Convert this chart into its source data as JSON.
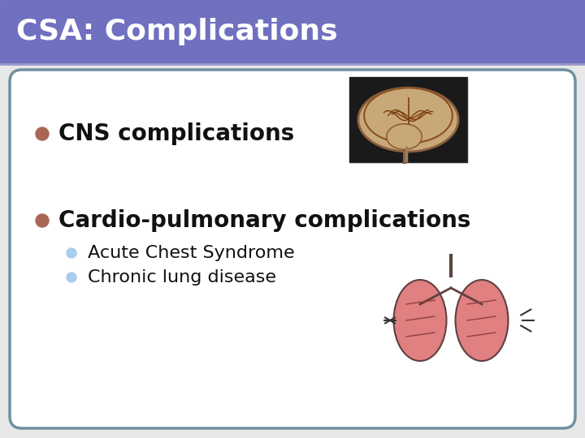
{
  "title": "CSA: Complications",
  "title_bg_color": "#7070C0",
  "title_text_color": "#FFFFFF",
  "title_fontsize": 26,
  "slide_bg_color": "#E8E8E8",
  "content_bg_color": "#FFFFFF",
  "border_color": "#7090A0",
  "bullet1_text": "CNS complications",
  "bullet1_bullet_color": "#AA6655",
  "bullet2_text": "Cardio-pulmonary complications",
  "bullet2_bullet_color": "#AA6655",
  "sub_bullet1_text": "Acute Chest Syndrome",
  "sub_bullet2_text": "Chronic lung disease",
  "sub_bullet_color": "#AACCEE",
  "main_text_fontsize": 20,
  "sub_text_fontsize": 16,
  "text_color": "#111111",
  "fig_width": 7.2,
  "fig_height": 5.4,
  "dpi": 100
}
